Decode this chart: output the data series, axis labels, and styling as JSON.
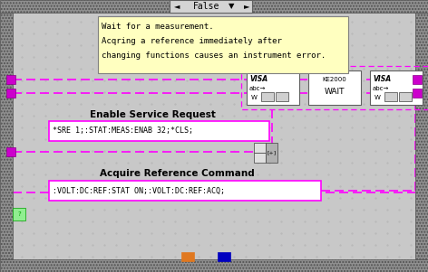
{
  "bg_color": "#c0c0c0",
  "inner_bg_color": "#c8c8c8",
  "hatch_color": "#808080",
  "grid_dot_color": "#b8b8b8",
  "title_text": "False",
  "title_bg": "#d4d4d4",
  "title_border": "#808080",
  "tooltip_lines": [
    "Wait for a measurement.",
    "Acqring a reference immediately after",
    "changing functions causes an instrument error."
  ],
  "tooltip_bg": "#ffffc0",
  "tooltip_border": "#808080",
  "wire_color": "#ff00ff",
  "connector_color": "#cc00cc",
  "connector_dark": "#880088",
  "box_border": "#ff00ff",
  "cmd_bg": "#ffffff",
  "visa_bg": "#ffffff",
  "visa_border": "#606060",
  "ke_bg": "#ffffff",
  "ke_border": "#606060",
  "label1_title": "Enable Service Request",
  "label1_cmd": "*SRE 1;:STAT:MEAS:ENAB 32;*CLS;",
  "label2_title": "Acquire Reference Command",
  "label2_cmd": ":VOLT:DC:REF:STAT ON;:VOLT:DC:REF:ACQ;",
  "orange_color": "#e07820",
  "blue_color": "#0000c0",
  "green_color": "#00a000",
  "green_bg": "#90ee90",
  "fig_w": 4.72,
  "fig_h": 3.01,
  "dpi": 100,
  "pw": 472,
  "ph": 301,
  "border_thick": 14,
  "border_color": "#808080"
}
